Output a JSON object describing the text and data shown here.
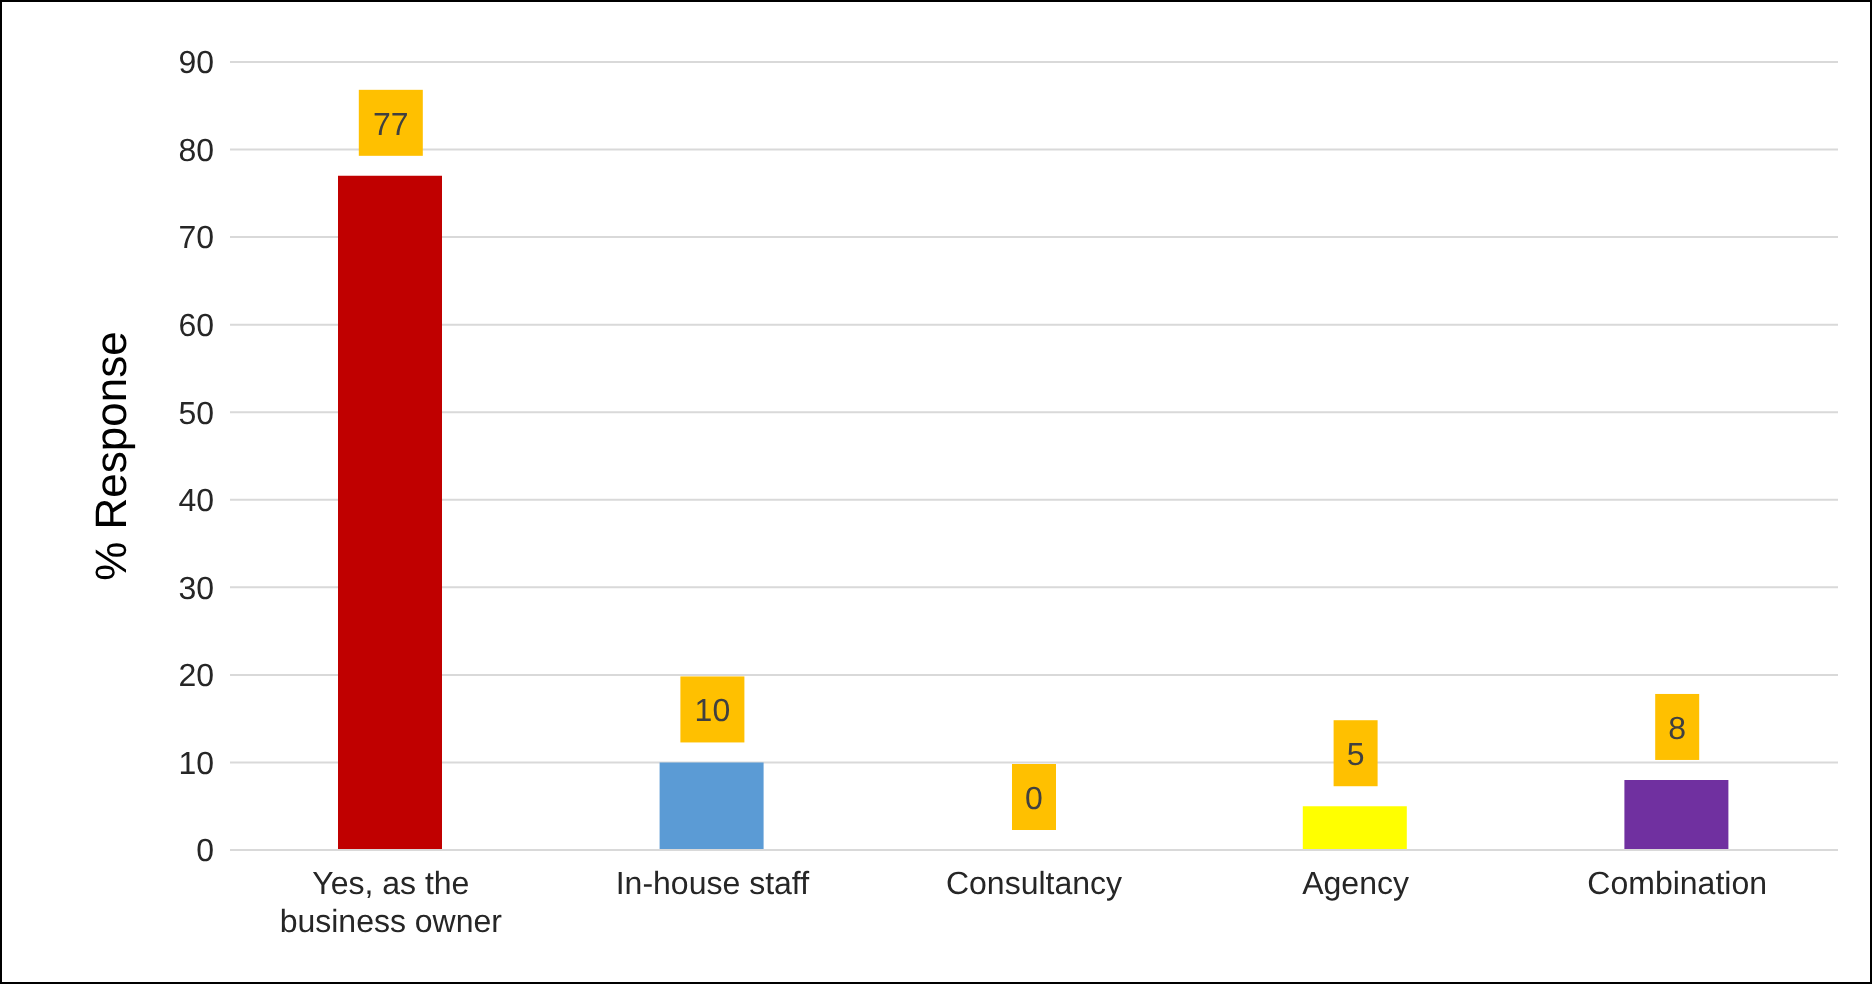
{
  "chart_data": {
    "type": "bar",
    "ylabel": "% Response",
    "categories": [
      "Yes, as the business owner",
      "In-house staff",
      "Consultancy",
      "Agency",
      "Combination"
    ],
    "values": [
      77,
      10,
      0,
      5,
      8
    ],
    "colors": [
      "#c00000",
      "#5b9bd5",
      "#a5a5a5",
      "#ffff00",
      "#7030a0"
    ],
    "ylim": [
      0,
      90
    ],
    "yticks": [
      0,
      10,
      20,
      30,
      40,
      50,
      60,
      70,
      80,
      90
    ],
    "grid": "y",
    "data_labels": true
  }
}
